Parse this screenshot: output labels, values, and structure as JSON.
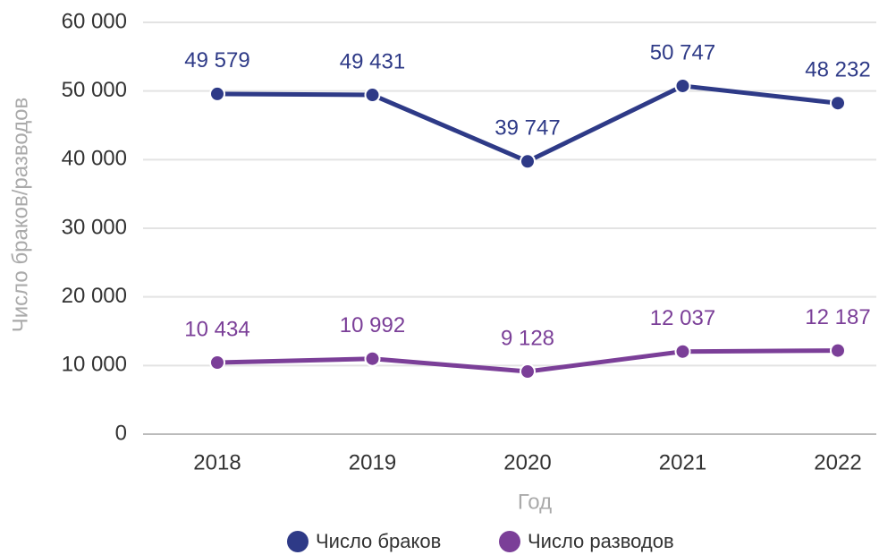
{
  "chart_data": {
    "type": "line",
    "x_label": "Год",
    "y_label": "Число браков/разводов",
    "categories": [
      "2018",
      "2019",
      "2020",
      "2021",
      "2022"
    ],
    "series": [
      {
        "name": "Число браков",
        "color": "#2e3a87",
        "values": [
          49579,
          49431,
          39747,
          50747,
          48232
        ],
        "value_labels": [
          "49 579",
          "49 431",
          "39 747",
          "50 747",
          "48 232"
        ]
      },
      {
        "name": "Число разводов",
        "color": "#7b3f98",
        "values": [
          10434,
          10992,
          9128,
          12037,
          12187
        ],
        "value_labels": [
          "10 434",
          "10 992",
          "9 128",
          "12 037",
          "12 187"
        ]
      }
    ],
    "ylim": [
      0,
      60000
    ],
    "yticks": [
      0,
      {
        "value": 10000,
        "label": "10 000"
      },
      {
        "value": 20000,
        "label": "20 000"
      },
      {
        "value": 30000,
        "label": "30 000"
      },
      {
        "value": 40000,
        "label": "40 000"
      },
      {
        "value": 50000,
        "label": "50 000"
      },
      {
        "value": 60000,
        "label": "60 000"
      }
    ],
    "grid": true,
    "legend": "bottom"
  }
}
